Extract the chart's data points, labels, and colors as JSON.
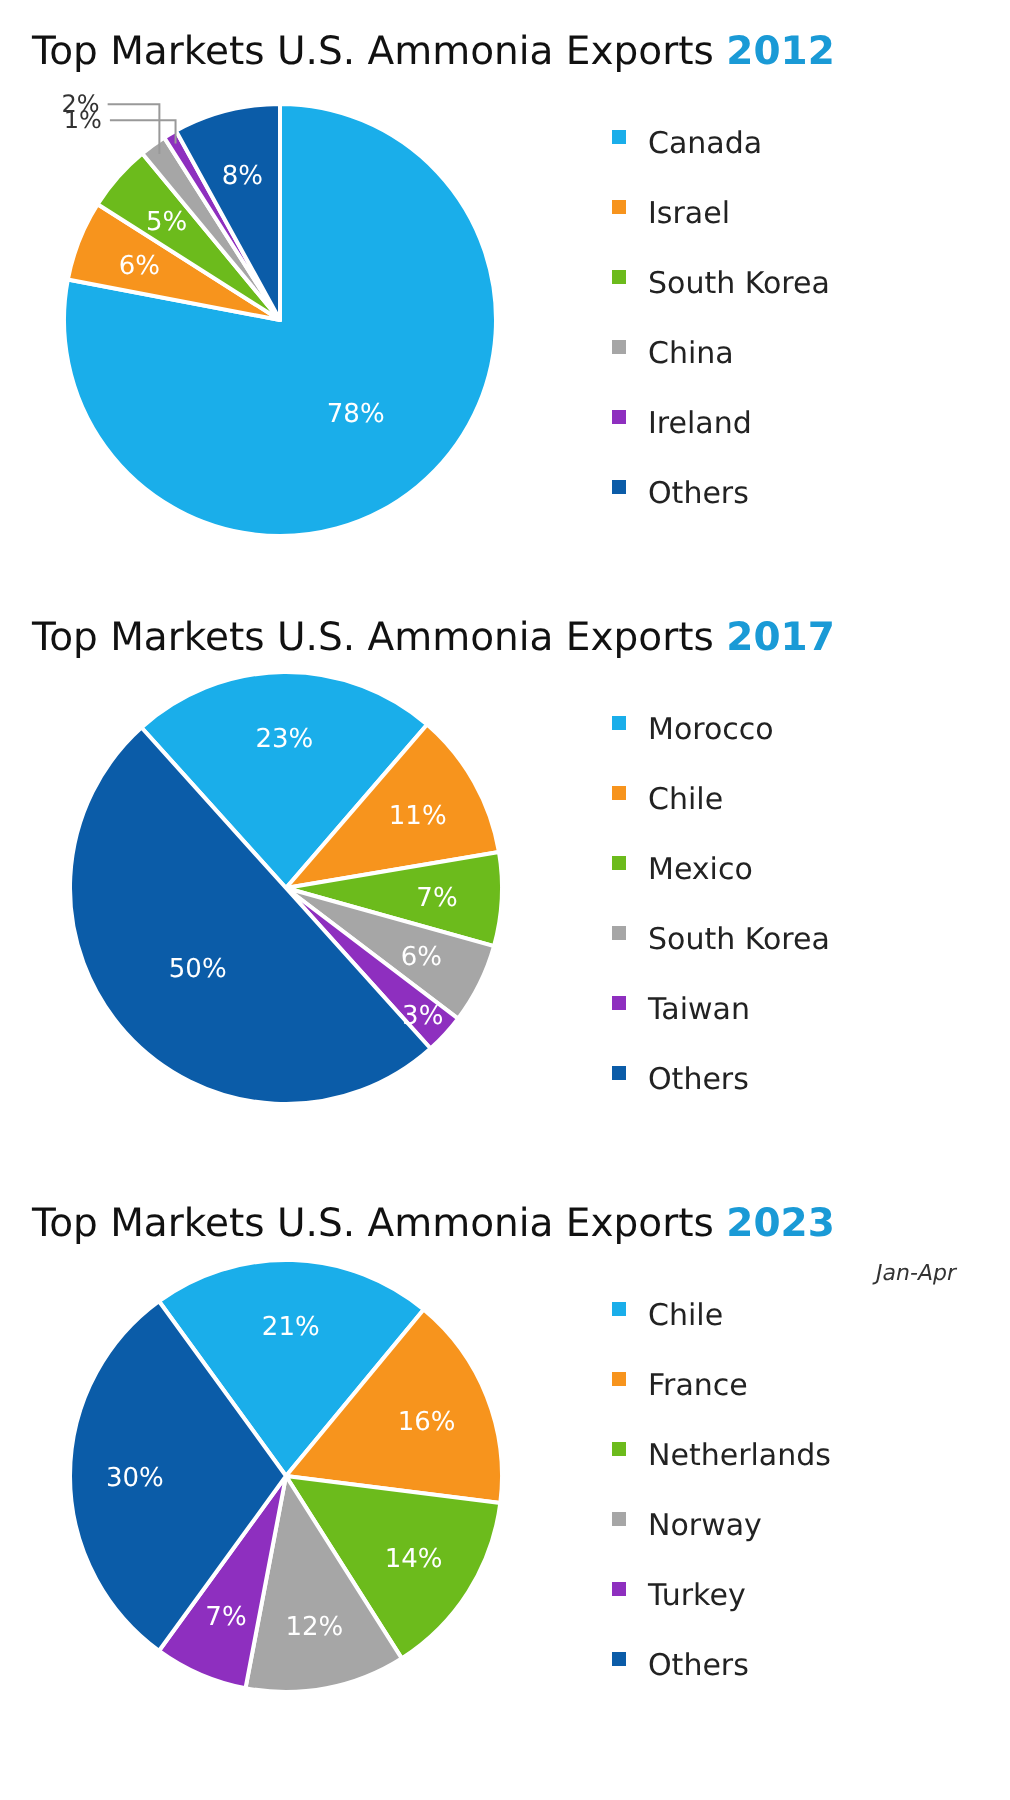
{
  "chart_data": [
    {
      "type": "pie",
      "title": "Top Markets U.S. Ammonia Exports 2012",
      "categories": [
        "Canada",
        "Israel",
        "South Korea",
        "China",
        "Ireland",
        "Others"
      ],
      "values": [
        78,
        6,
        5,
        2,
        1,
        8
      ],
      "value_labels": [
        "78%",
        "6%",
        "5%",
        "2%",
        "1%",
        "8%"
      ],
      "colors": [
        "#1aaeea",
        "#f7941d",
        "#6cbb1c",
        "#a6a6a6",
        "#8e2fbf",
        "#0b5ca8"
      ],
      "legend": "right"
    },
    {
      "type": "pie",
      "title": "Top Markets U.S. Ammonia Exports 2017",
      "categories": [
        "Morocco",
        "Chile",
        "Mexico",
        "South Korea",
        "Taiwan",
        "Others"
      ],
      "values": [
        23,
        11,
        7,
        6,
        3,
        50
      ],
      "value_labels": [
        "23%",
        "11%",
        "7%",
        "6%",
        "3%",
        "50%"
      ],
      "colors": [
        "#1aaeea",
        "#f7941d",
        "#6cbb1c",
        "#a6a6a6",
        "#8e2fbf",
        "#0b5ca8"
      ],
      "legend": "right"
    },
    {
      "type": "pie",
      "title": "Top Markets U.S. Ammonia Exports 2023",
      "subtitle": "Jan-Apr",
      "categories": [
        "Chile",
        "France",
        "Netherlands",
        "Norway",
        "Turkey",
        "Others"
      ],
      "values": [
        21,
        16,
        14,
        12,
        7,
        30
      ],
      "value_labels": [
        "21%",
        "16%",
        "14%",
        "12%",
        "7%",
        "30%"
      ],
      "colors": [
        "#1aaeea",
        "#f7941d",
        "#6cbb1c",
        "#a6a6a6",
        "#8e2fbf",
        "#0b5ca8"
      ],
      "legend": "right"
    }
  ]
}
